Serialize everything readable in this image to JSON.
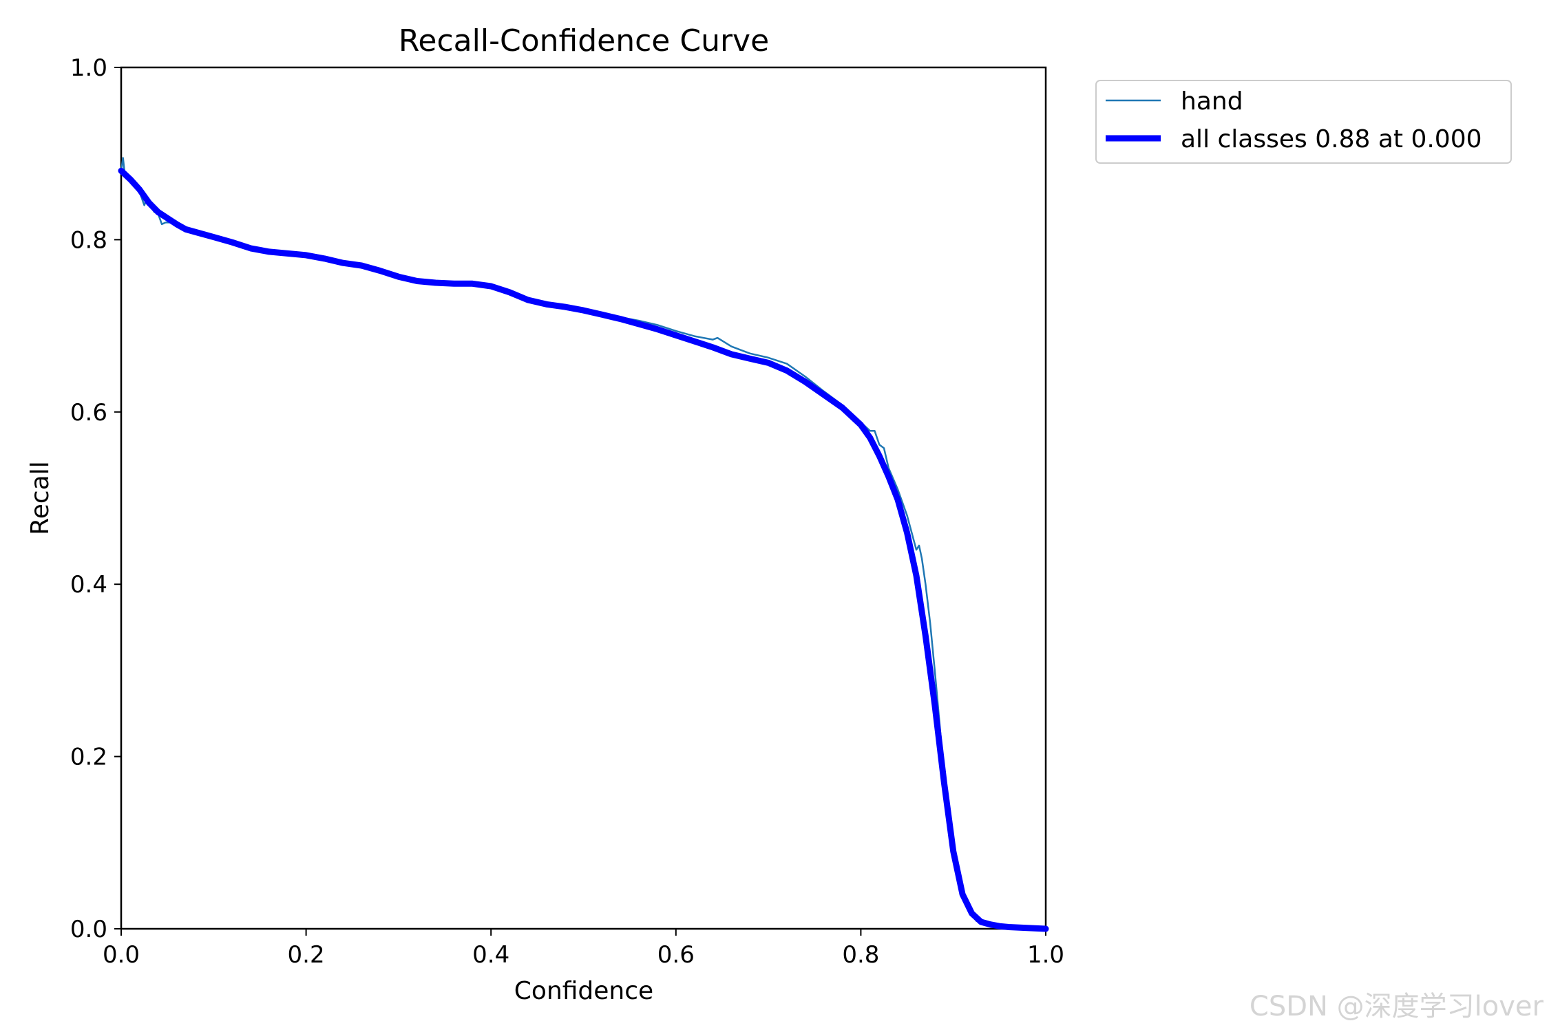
{
  "watermark": "CSDN @深度学习lover",
  "chart_data": {
    "type": "line",
    "title": "Recall-Confidence Curve",
    "xlabel": "Confidence",
    "ylabel": "Recall",
    "xlim": [
      0,
      1
    ],
    "ylim": [
      0,
      1
    ],
    "xticks": [
      "0.0",
      "0.2",
      "0.4",
      "0.6",
      "0.8",
      "1.0"
    ],
    "yticks": [
      "0.0",
      "0.2",
      "0.4",
      "0.6",
      "0.8",
      "1.0"
    ],
    "grid": false,
    "legend_position": "outside-top-right",
    "series": [
      {
        "name": "hand",
        "color": "#1f77b4",
        "style": "thin",
        "x": [
          0.0,
          0.002,
          0.004,
          0.008,
          0.012,
          0.02,
          0.025,
          0.028,
          0.032,
          0.036,
          0.04,
          0.044,
          0.048,
          0.05,
          0.055,
          0.06,
          0.07,
          0.08,
          0.1,
          0.12,
          0.14,
          0.16,
          0.18,
          0.2,
          0.22,
          0.24,
          0.26,
          0.28,
          0.3,
          0.32,
          0.34,
          0.36,
          0.38,
          0.4,
          0.42,
          0.44,
          0.46,
          0.48,
          0.5,
          0.52,
          0.54,
          0.56,
          0.58,
          0.6,
          0.62,
          0.64,
          0.645,
          0.66,
          0.68,
          0.7,
          0.72,
          0.74,
          0.76,
          0.78,
          0.8,
          0.81,
          0.815,
          0.82,
          0.825,
          0.83,
          0.84,
          0.85,
          0.86,
          0.863,
          0.866,
          0.87,
          0.875,
          0.88,
          0.885,
          0.89,
          0.895,
          0.9,
          0.905,
          0.91,
          0.915,
          0.92,
          0.925,
          0.93,
          0.94,
          0.95,
          0.96,
          0.97,
          0.98,
          1.0
        ],
        "y": [
          0.88,
          0.895,
          0.875,
          0.872,
          0.865,
          0.855,
          0.84,
          0.848,
          0.838,
          0.832,
          0.83,
          0.818,
          0.82,
          0.82,
          0.82,
          0.82,
          0.812,
          0.81,
          0.803,
          0.797,
          0.789,
          0.785,
          0.784,
          0.781,
          0.777,
          0.773,
          0.77,
          0.766,
          0.758,
          0.753,
          0.75,
          0.749,
          0.749,
          0.747,
          0.741,
          0.731,
          0.726,
          0.724,
          0.72,
          0.715,
          0.71,
          0.706,
          0.701,
          0.694,
          0.688,
          0.684,
          0.686,
          0.676,
          0.668,
          0.663,
          0.656,
          0.641,
          0.624,
          0.608,
          0.588,
          0.578,
          0.578,
          0.562,
          0.558,
          0.535,
          0.51,
          0.48,
          0.44,
          0.445,
          0.43,
          0.4,
          0.355,
          0.3,
          0.24,
          0.18,
          0.13,
          0.095,
          0.075,
          0.045,
          0.03,
          0.018,
          0.009,
          0.008,
          0.005,
          0.004,
          0.003,
          0.002,
          0.001,
          0.001
        ]
      },
      {
        "name": "all classes 0.88 at 0.000",
        "color": "#0000ff",
        "style": "thick",
        "x": [
          0.0,
          0.01,
          0.02,
          0.03,
          0.04,
          0.05,
          0.06,
          0.07,
          0.08,
          0.1,
          0.12,
          0.14,
          0.16,
          0.18,
          0.2,
          0.22,
          0.24,
          0.26,
          0.28,
          0.3,
          0.32,
          0.34,
          0.36,
          0.38,
          0.4,
          0.42,
          0.44,
          0.46,
          0.48,
          0.5,
          0.52,
          0.54,
          0.56,
          0.58,
          0.6,
          0.62,
          0.64,
          0.66,
          0.68,
          0.7,
          0.72,
          0.74,
          0.76,
          0.78,
          0.8,
          0.81,
          0.82,
          0.83,
          0.84,
          0.85,
          0.86,
          0.87,
          0.88,
          0.89,
          0.9,
          0.91,
          0.92,
          0.93,
          0.94,
          0.95,
          0.96,
          0.98,
          1.0
        ],
        "y": [
          0.88,
          0.87,
          0.858,
          0.843,
          0.832,
          0.825,
          0.818,
          0.812,
          0.809,
          0.803,
          0.797,
          0.79,
          0.786,
          0.784,
          0.782,
          0.778,
          0.773,
          0.77,
          0.764,
          0.757,
          0.752,
          0.75,
          0.749,
          0.749,
          0.746,
          0.739,
          0.73,
          0.725,
          0.722,
          0.718,
          0.713,
          0.708,
          0.702,
          0.696,
          0.689,
          0.682,
          0.675,
          0.667,
          0.662,
          0.657,
          0.648,
          0.635,
          0.62,
          0.605,
          0.585,
          0.57,
          0.549,
          0.525,
          0.498,
          0.46,
          0.41,
          0.34,
          0.26,
          0.17,
          0.09,
          0.04,
          0.018,
          0.008,
          0.005,
          0.003,
          0.002,
          0.001,
          0.0
        ]
      }
    ]
  }
}
